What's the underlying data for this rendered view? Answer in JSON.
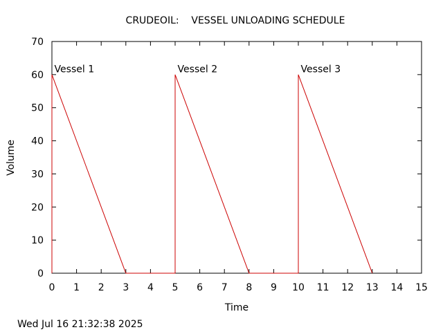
{
  "chart_data": {
    "type": "line",
    "title": "CRUDEOIL:    VESSEL UNLOADING SCHEDULE",
    "xlabel": "Time",
    "ylabel": "Volume",
    "xlim": [
      0,
      15
    ],
    "ylim": [
      0,
      70
    ],
    "xticks": [
      0,
      1,
      2,
      3,
      4,
      5,
      6,
      7,
      8,
      9,
      10,
      11,
      12,
      13,
      14,
      15
    ],
    "yticks": [
      0,
      10,
      20,
      30,
      40,
      50,
      60,
      70
    ],
    "grid": false,
    "line_color": "#cc0000",
    "series": [
      {
        "x": [
          0,
          0,
          3,
          5,
          5,
          8,
          10,
          10,
          13
        ],
        "y": [
          0,
          60,
          0,
          0,
          60,
          0,
          0,
          60,
          0
        ]
      }
    ],
    "annotations": [
      {
        "text": "Vessel 1",
        "x": 0.1,
        "y": 61.5
      },
      {
        "text": "Vessel 2",
        "x": 5.1,
        "y": 61.5
      },
      {
        "text": "Vessel 3",
        "x": 10.1,
        "y": 61.5
      }
    ]
  },
  "footer": {
    "timestamp": "Wed Jul 16 21:32:38 2025"
  }
}
